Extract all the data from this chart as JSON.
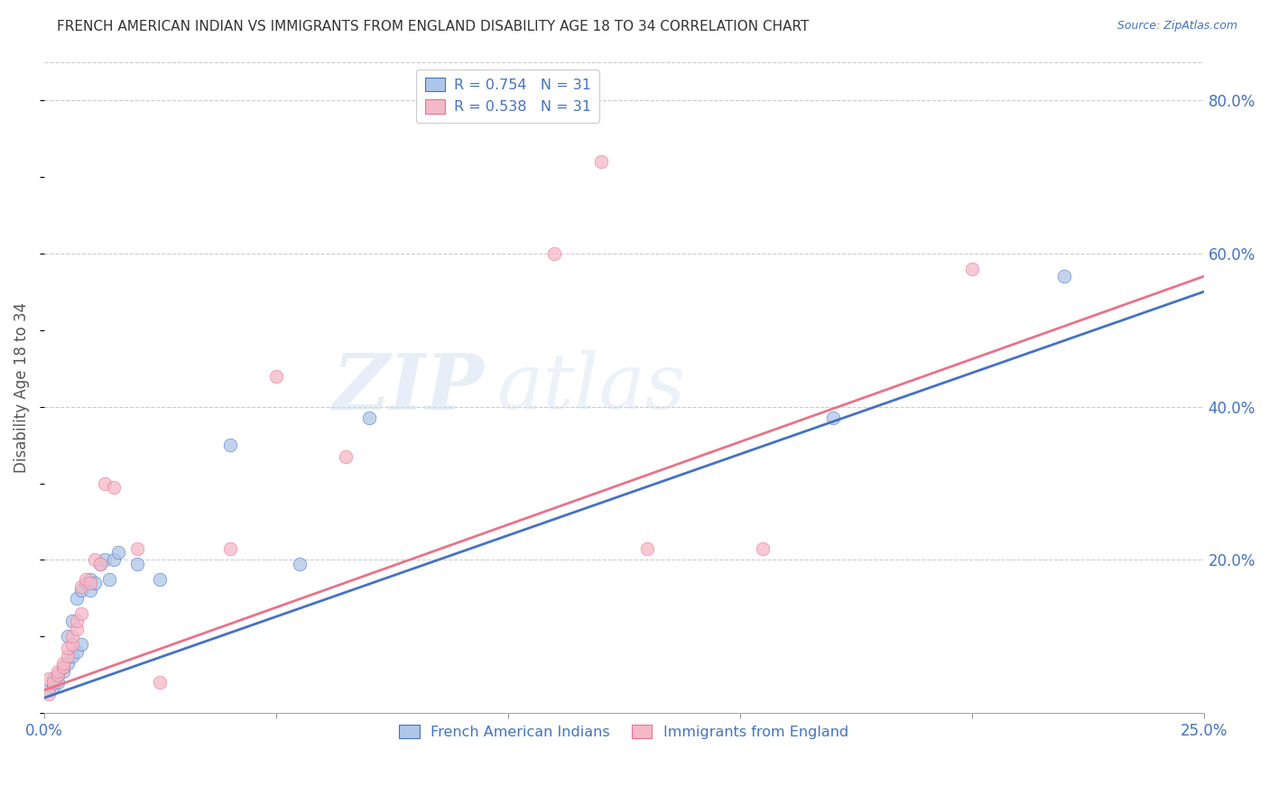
{
  "title": "FRENCH AMERICAN INDIAN VS IMMIGRANTS FROM ENGLAND DISABILITY AGE 18 TO 34 CORRELATION CHART",
  "source": "Source: ZipAtlas.com",
  "ylabel": "Disability Age 18 to 34",
  "xlim": [
    0.0,
    0.25
  ],
  "ylim": [
    0.0,
    0.85
  ],
  "xticks": [
    0.0,
    0.05,
    0.1,
    0.15,
    0.2,
    0.25
  ],
  "xtick_labels": [
    "0.0%",
    "",
    "",
    "",
    "",
    "25.0%"
  ],
  "yticks": [
    0.2,
    0.4,
    0.6,
    0.8
  ],
  "ytick_labels": [
    "20.0%",
    "40.0%",
    "60.0%",
    "80.0%"
  ],
  "legend_R1": "R = 0.754",
  "legend_N1": "N = 31",
  "legend_R2": "R = 0.538",
  "legend_N2": "N = 31",
  "label1": "French American Indians",
  "label2": "Immigrants from England",
  "color1": "#aec6e8",
  "color2": "#f5b8c8",
  "trendline_color1": "#4472c4",
  "trendline_color2": "#e8738a",
  "axis_label_color": "#4472c4",
  "title_color": "#333333",
  "background_color": "#ffffff",
  "grid_color": "#cccccc",
  "watermark_left": "ZIP",
  "watermark_right": "atlas",
  "blue_x": [
    0.001,
    0.002,
    0.002,
    0.003,
    0.003,
    0.004,
    0.004,
    0.005,
    0.005,
    0.006,
    0.006,
    0.007,
    0.007,
    0.008,
    0.008,
    0.009,
    0.01,
    0.01,
    0.011,
    0.012,
    0.013,
    0.014,
    0.015,
    0.016,
    0.02,
    0.025,
    0.04,
    0.055,
    0.07,
    0.17,
    0.22
  ],
  "blue_y": [
    0.03,
    0.035,
    0.045,
    0.04,
    0.05,
    0.055,
    0.06,
    0.065,
    0.1,
    0.075,
    0.12,
    0.08,
    0.15,
    0.09,
    0.16,
    0.17,
    0.16,
    0.175,
    0.17,
    0.195,
    0.2,
    0.175,
    0.2,
    0.21,
    0.195,
    0.175,
    0.35,
    0.195,
    0.385,
    0.385,
    0.57
  ],
  "pink_x": [
    0.001,
    0.001,
    0.002,
    0.003,
    0.003,
    0.004,
    0.004,
    0.005,
    0.005,
    0.006,
    0.006,
    0.007,
    0.007,
    0.008,
    0.008,
    0.009,
    0.01,
    0.011,
    0.012,
    0.013,
    0.015,
    0.02,
    0.025,
    0.04,
    0.05,
    0.065,
    0.11,
    0.13,
    0.155,
    0.2,
    0.12
  ],
  "pink_y": [
    0.025,
    0.045,
    0.04,
    0.05,
    0.055,
    0.06,
    0.065,
    0.075,
    0.085,
    0.09,
    0.1,
    0.11,
    0.12,
    0.13,
    0.165,
    0.175,
    0.17,
    0.2,
    0.195,
    0.3,
    0.295,
    0.215,
    0.04,
    0.215,
    0.44,
    0.335,
    0.6,
    0.215,
    0.215,
    0.58,
    0.72
  ]
}
